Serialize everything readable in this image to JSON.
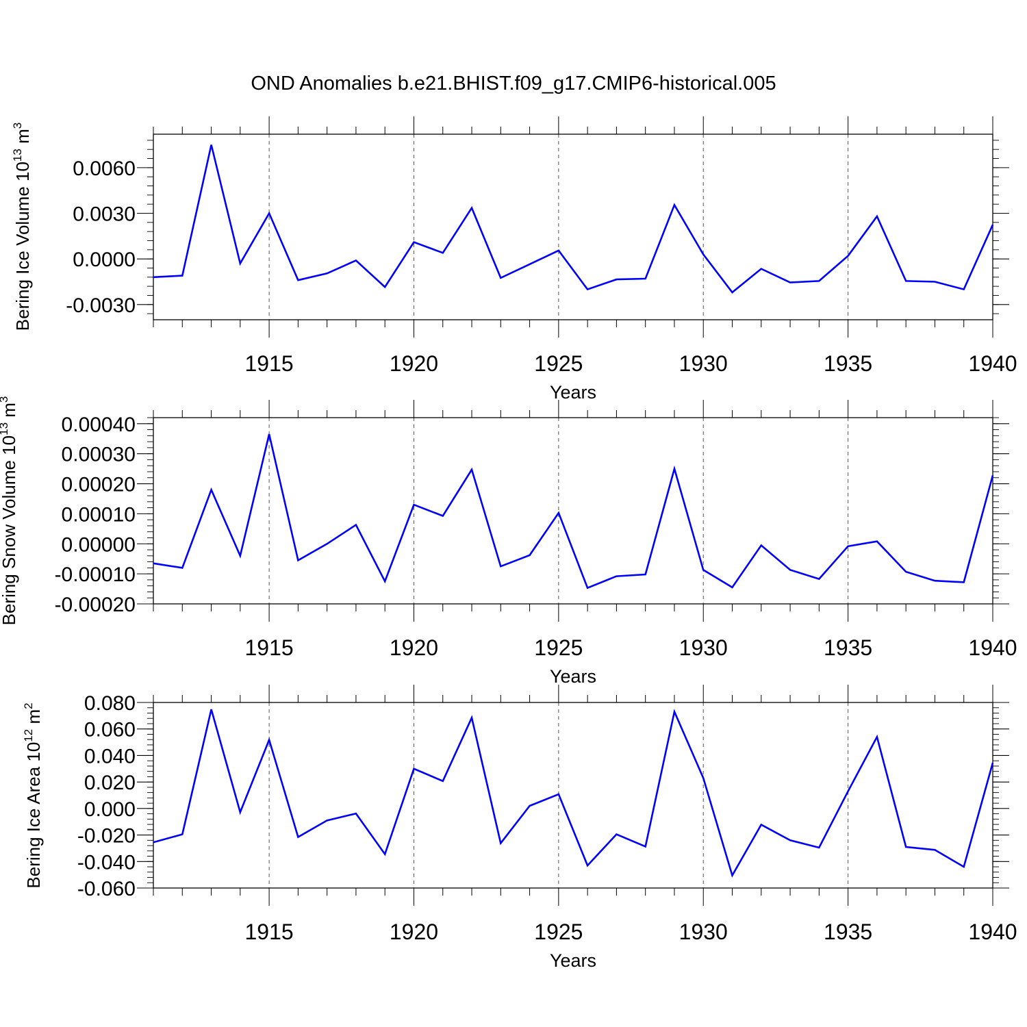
{
  "title": "OND Anomalies b.e21.BHIST.f09_g17.CMIP6-historical.005",
  "colors": {
    "line": "#0000ff",
    "axis": "#000000",
    "grid": "#555555"
  },
  "chart_data": [
    {
      "type": "line",
      "title": "OND Anomalies b.e21.BHIST.f09_g17.CMIP6-historical.005",
      "xlabel": "Years",
      "ylabel_main": "Bering Ice Volume 10",
      "ylabel_exp": "13",
      "ylabel_unit": " m",
      "ylabel_unit_exp": "3",
      "xlim": [
        1911,
        1940
      ],
      "ylim": [
        -0.004,
        0.0082
      ],
      "x_ticks": [
        1915,
        1920,
        1925,
        1930,
        1935,
        1940
      ],
      "x_tick_labels": [
        "1915",
        "1920",
        "1925",
        "1930",
        "1935",
        "1940"
      ],
      "y_ticks": [
        -0.003,
        0.0,
        0.003,
        0.006
      ],
      "y_tick_labels": [
        "-0.0030",
        "0.0000",
        "0.0030",
        "0.0060"
      ],
      "y_minor_step": 0.0006,
      "grid": "vertical dashed at major x ticks",
      "series": [
        {
          "name": "Bering Ice Volume",
          "x": [
            1911,
            1912,
            1913,
            1914,
            1915,
            1916,
            1917,
            1918,
            1919,
            1920,
            1921,
            1922,
            1923,
            1924,
            1925,
            1926,
            1927,
            1928,
            1929,
            1930,
            1931,
            1932,
            1933,
            1934,
            1935,
            1936,
            1937,
            1938,
            1939,
            1940
          ],
          "values": [
            -0.0012,
            -0.0011,
            0.0075,
            -0.0003,
            0.003,
            -0.0014,
            -0.00095,
            -0.0001,
            -0.00185,
            0.0011,
            0.0004,
            0.00335,
            -0.00125,
            -0.00035,
            0.00055,
            -0.002,
            -0.00135,
            -0.0013,
            0.00355,
            0.0003,
            -0.0022,
            -0.00065,
            -0.00155,
            -0.00145,
            0.0002,
            0.0028,
            -0.00145,
            -0.0015,
            -0.002,
            0.00225
          ]
        }
      ]
    },
    {
      "type": "line",
      "xlabel": "Years",
      "ylabel_main": "Bering Snow Volume 10",
      "ylabel_exp": "13",
      "ylabel_unit": " m",
      "ylabel_unit_exp": "3",
      "xlim": [
        1911,
        1940
      ],
      "ylim": [
        -0.0002,
        0.00042
      ],
      "x_ticks": [
        1915,
        1920,
        1925,
        1930,
        1935,
        1940
      ],
      "x_tick_labels": [
        "1915",
        "1920",
        "1925",
        "1930",
        "1935",
        "1940"
      ],
      "y_ticks": [
        -0.0002,
        -0.0001,
        0.0,
        0.0001,
        0.0002,
        0.0003,
        0.0004
      ],
      "y_tick_labels": [
        "-0.00020",
        "-0.00010",
        "0.00000",
        "0.00010",
        "0.00020",
        "0.00030",
        "0.00040"
      ],
      "y_minor_step": 2e-05,
      "grid": "vertical dashed at major x ticks",
      "series": [
        {
          "name": "Bering Snow Volume",
          "x": [
            1911,
            1912,
            1913,
            1914,
            1915,
            1916,
            1917,
            1918,
            1919,
            1920,
            1921,
            1922,
            1923,
            1924,
            1925,
            1926,
            1927,
            1928,
            1929,
            1930,
            1931,
            1932,
            1933,
            1934,
            1935,
            1936,
            1937,
            1938,
            1939,
            1940
          ],
          "values": [
            -6.5e-05,
            -8e-05,
            0.00018,
            -4e-05,
            0.000365,
            -5.5e-05,
            0.0,
            6.3e-05,
            -0.000125,
            0.00013,
            9.3e-05,
            0.000247,
            -7.5e-05,
            -3.8e-05,
            0.000103,
            -0.000147,
            -0.000108,
            -0.000102,
            0.00025,
            -8.7e-05,
            -0.000145,
            -5e-06,
            -8.7e-05,
            -0.000117,
            -8e-06,
            8e-06,
            -9.3e-05,
            -0.000123,
            -0.000128,
            0.000228
          ]
        }
      ]
    },
    {
      "type": "line",
      "xlabel": "Years",
      "ylabel_main": "Bering Ice Area 10",
      "ylabel_exp": "12",
      "ylabel_unit": " m",
      "ylabel_unit_exp": "2",
      "xlim": [
        1911,
        1940
      ],
      "ylim": [
        -0.06,
        0.08
      ],
      "x_ticks": [
        1915,
        1920,
        1925,
        1930,
        1935,
        1940
      ],
      "x_tick_labels": [
        "1915",
        "1920",
        "1925",
        "1930",
        "1935",
        "1940"
      ],
      "y_ticks": [
        -0.06,
        -0.04,
        -0.02,
        0.0,
        0.02,
        0.04,
        0.06,
        0.08
      ],
      "y_tick_labels": [
        "-0.060",
        "-0.040",
        "-0.020",
        "0.000",
        "0.020",
        "0.040",
        "0.060",
        "0.080"
      ],
      "y_minor_step": 0.004,
      "grid": "vertical dashed at major x ticks",
      "series": [
        {
          "name": "Bering Ice Area",
          "x": [
            1911,
            1912,
            1913,
            1914,
            1915,
            1916,
            1917,
            1918,
            1919,
            1920,
            1921,
            1922,
            1923,
            1924,
            1925,
            1926,
            1927,
            1928,
            1929,
            1930,
            1931,
            1932,
            1933,
            1934,
            1935,
            1936,
            1937,
            1938,
            1939,
            1940
          ],
          "values": [
            -0.0255,
            -0.0195,
            0.0748,
            -0.0028,
            0.0518,
            -0.0215,
            -0.009,
            -0.0038,
            -0.0345,
            0.03,
            0.0207,
            0.0685,
            -0.0262,
            0.002,
            0.0107,
            -0.043,
            -0.0195,
            -0.0287,
            0.073,
            0.023,
            -0.0505,
            -0.0122,
            -0.024,
            -0.0295,
            0.013,
            0.054,
            -0.029,
            -0.0312,
            -0.044,
            0.0345
          ]
        }
      ]
    }
  ]
}
